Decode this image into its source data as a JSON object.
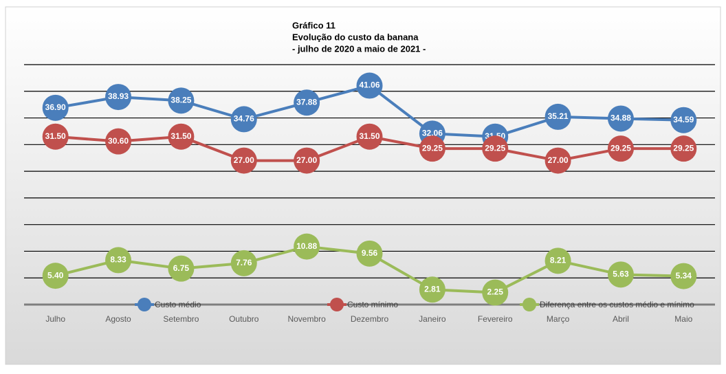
{
  "chart_data": {
    "type": "line",
    "title": [
      "Gráfico 11",
      "Evolução do custo da banana",
      "- julho de 2020 a maio de 2021 -"
    ],
    "categories": [
      "Julho",
      "Agosto",
      "Setembro",
      "Outubro",
      "Novembro",
      "Dezembro",
      "Janeiro",
      "Fevereiro",
      "Março",
      "Abril",
      "Maio"
    ],
    "series": [
      {
        "name": "Custo médio",
        "color": "#4a7ebb",
        "values": [
          36.9,
          38.93,
          38.25,
          34.76,
          37.88,
          41.06,
          32.06,
          31.5,
          35.21,
          34.88,
          34.59
        ],
        "value_labels": [
          "36.90",
          "38.93",
          "38.25",
          "34.76",
          "37.88",
          "41.06",
          "32.06",
          "31.50",
          "35.21",
          "34.88",
          "34.59"
        ]
      },
      {
        "name": "Custo mínimo",
        "color": "#c0504d",
        "values": [
          31.5,
          30.6,
          31.5,
          27,
          27,
          31.5,
          29.25,
          29.25,
          27,
          29.25,
          29.25
        ],
        "value_labels": [
          "31.50",
          "30.60",
          "31.50",
          "27.00",
          "27.00",
          "31.50",
          "29.25",
          "29.25",
          "27.00",
          "29.25",
          "29.25"
        ]
      },
      {
        "name": "Diferença entre os custos médio e mínimo",
        "color": "#9bbb59",
        "values": [
          5.4,
          8.33,
          6.75,
          7.76,
          10.88,
          9.56,
          2.81,
          2.25,
          8.21,
          5.63,
          5.34
        ],
        "value_labels": [
          "5.40",
          "8.33",
          "6.75",
          "7.76",
          "10.88",
          "9.56",
          "2.81",
          "2.25",
          "8.21",
          "5.63",
          "5.34"
        ]
      }
    ],
    "ylim": [
      0,
      45
    ],
    "yticks": [
      0,
      5,
      10,
      15,
      20,
      25,
      30,
      35,
      40,
      45
    ],
    "grid": true
  }
}
